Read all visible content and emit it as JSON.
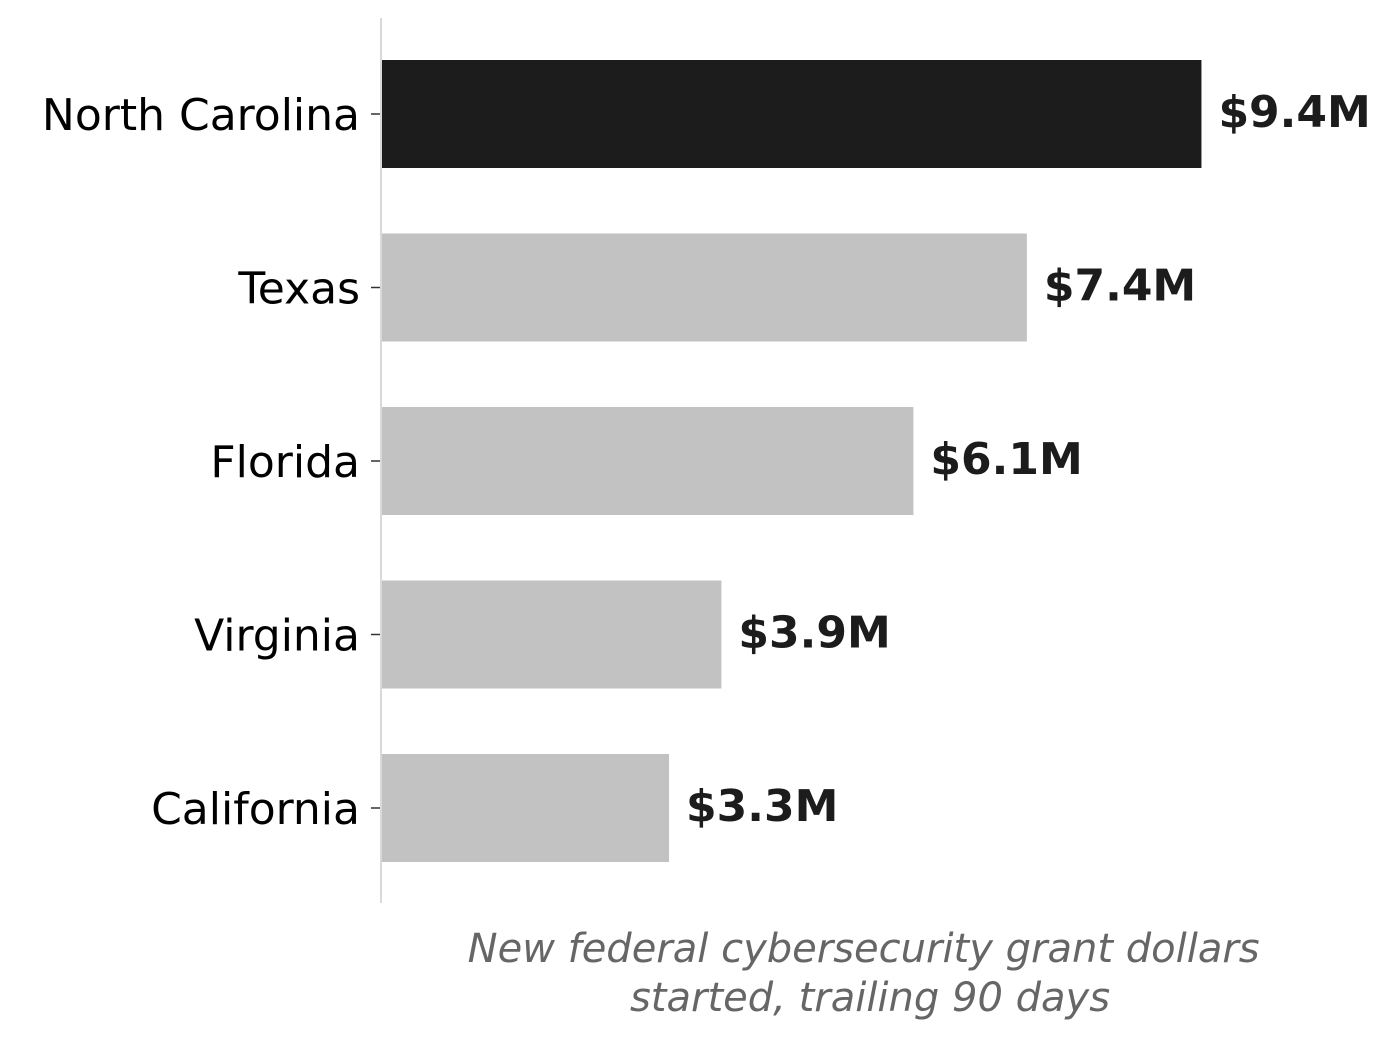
{
  "chart_data": {
    "type": "bar",
    "orientation": "horizontal",
    "categories": [
      "North Carolina",
      "Texas",
      "Florida",
      "Virginia",
      "California"
    ],
    "values": [
      9.4,
      7.4,
      6.1,
      3.9,
      3.3
    ],
    "value_labels": [
      "$9.4M",
      "$7.4M",
      "$6.1M",
      "$3.9M",
      "$3.3M"
    ],
    "unit": "$M",
    "title": "",
    "xlabel": [
      "New federal cybersecurity grant dollars",
      "started, trailing 90 days"
    ],
    "ylabel": "",
    "xlim": [
      0,
      10.3
    ],
    "grid": false,
    "legend": "none",
    "colors": {
      "highlight": "#1c1c1c",
      "default": "#c2c2c2",
      "axis": "#d9d9d9",
      "tick": "#333333"
    },
    "highlight_index": 0
  }
}
